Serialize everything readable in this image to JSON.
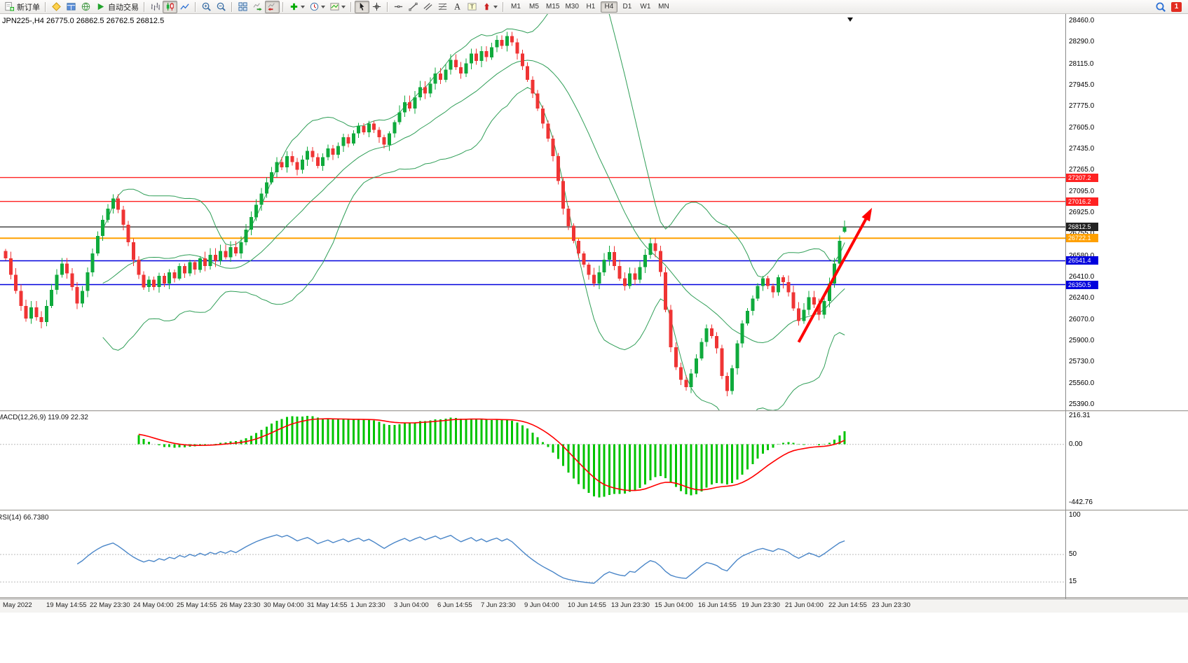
{
  "toolbar": {
    "new_order_label": "新订单",
    "autotrading_label": "自动交易",
    "timeframes": [
      "M1",
      "M5",
      "M15",
      "M30",
      "H1",
      "H4",
      "D1",
      "W1",
      "MN"
    ],
    "active_timeframe": "H4",
    "notification_badge": "1"
  },
  "chart": {
    "title": "JPN225-,H4  26775.0 26862.5 26762.5 26812.5",
    "symbol": "JPN225-",
    "period": "H4",
    "open": "26775.0",
    "high": "26862.5",
    "low": "26762.5",
    "close": "26812.5",
    "price_min": 25390,
    "price_max": 28460,
    "price_axis": [
      "28460.0",
      "28290.0",
      "28115.0",
      "27945.0",
      "27775.0",
      "27605.0",
      "27435.0",
      "27265.0",
      "27095.0",
      "26925.0",
      "26755.0",
      "26580.0",
      "26410.0",
      "26240.0",
      "26070.0",
      "25900.0",
      "25730.0",
      "25560.0",
      "25390.0"
    ],
    "colors": {
      "up": "#0faa3c",
      "down": "#ef3434",
      "bands": "#2f9e57"
    },
    "hlines": [
      {
        "label": "27207.2",
        "price": 27207.2,
        "color": "#ff2222",
        "width": 1.4
      },
      {
        "label": "27016.2",
        "price": 27016.2,
        "color": "#ff2222",
        "width": 1.4
      },
      {
        "label": "26812.5",
        "price": 26812.5,
        "color": "#222222",
        "width": 1.2
      },
      {
        "label": "26722.1",
        "price": 26722.1,
        "color": "#ffa000",
        "width": 2
      },
      {
        "label": "26541.4",
        "price": 26541.4,
        "color": "#0000dd",
        "width": 1.6
      },
      {
        "label": "26350.5",
        "price": 26350.5,
        "color": "#0000dd",
        "width": 1.6
      }
    ],
    "trend_arrow": {
      "from_bar": 155,
      "from_price": 25890,
      "to_bar": 169,
      "to_price": 26940,
      "color": "#ff0000"
    }
  },
  "chart_data": {
    "type": "candlestick",
    "symbol": "JPN225-",
    "timeframe": "H4",
    "bollinger": {
      "period": 20,
      "deviation": 2
    },
    "last_candle": {
      "open": 26775.0,
      "high": 26862.5,
      "low": 26762.5,
      "close": 26812.5
    },
    "closes": [
      26560,
      26430,
      26300,
      26180,
      26080,
      26170,
      26090,
      26050,
      26180,
      26310,
      26430,
      26520,
      26440,
      26330,
      26200,
      26300,
      26450,
      26600,
      26740,
      26870,
      26960,
      27040,
      26950,
      26830,
      26690,
      26550,
      26430,
      26330,
      26390,
      26330,
      26420,
      26360,
      26450,
      26400,
      26500,
      26440,
      26530,
      26470,
      26560,
      26500,
      26590,
      26540,
      26620,
      26570,
      26650,
      26600,
      26690,
      26790,
      26890,
      26990,
      27080,
      27170,
      27250,
      27330,
      27290,
      27380,
      27330,
      27270,
      27350,
      27420,
      27370,
      27300,
      27370,
      27440,
      27390,
      27460,
      27530,
      27480,
      27560,
      27620,
      27570,
      27640,
      27590,
      27530,
      27470,
      27560,
      27650,
      27730,
      27810,
      27760,
      27850,
      27930,
      27880,
      27960,
      28040,
      27990,
      28070,
      28150,
      28090,
      28040,
      28120,
      28200,
      28140,
      28220,
      28170,
      28250,
      28310,
      28260,
      28340,
      28290,
      28200,
      28100,
      27990,
      27880,
      27760,
      27640,
      27520,
      27380,
      27180,
      26960,
      26820,
      26700,
      26600,
      26510,
      26430,
      26360,
      26450,
      26550,
      26610,
      26500,
      26400,
      26340,
      26440,
      26390,
      26490,
      26590,
      26680,
      26620,
      26450,
      26150,
      25850,
      25690,
      25590,
      25530,
      25640,
      25760,
      25890,
      26000,
      25940,
      25840,
      25620,
      25500,
      25680,
      25880,
      26040,
      26140,
      26240,
      26340,
      26400,
      26340,
      26290,
      26410,
      26370,
      26290,
      26160,
      26060,
      26150,
      26250,
      26190,
      26110,
      26220,
      26360,
      26520,
      26700,
      26812.5
    ]
  },
  "macd_panel": {
    "name": "MACD(12,26,9)",
    "values": "119.09 22.32",
    "axis": [
      "216.31",
      "0.00",
      "-442.76"
    ],
    "histogram_color": "#00c400",
    "signal_color": "#ff0000"
  },
  "rsi_panel": {
    "name": "RSI(14)",
    "value": "66.7380",
    "axis": [
      "100",
      "50",
      "15"
    ],
    "levels": [
      50,
      15
    ],
    "line_color": "#4a86c8"
  },
  "time_axis": [
    "May 2022",
    "19 May 14:55",
    "22 May 23:30",
    "24 May 04:00",
    "25 May 14:55",
    "26 May 23:30",
    "30 May 04:00",
    "31 May 14:55",
    "1 Jun 23:30",
    "3 Jun 04:00",
    "6 Jun 14:55",
    "7 Jun 23:30",
    "9 Jun 04:00",
    "10 Jun 14:55",
    "13 Jun 23:30",
    "15 Jun 04:00",
    "16 Jun 14:55",
    "19 Jun 23:30",
    "21 Jun 04:00",
    "22 Jun 14:55",
    "23 Jun 23:30"
  ]
}
